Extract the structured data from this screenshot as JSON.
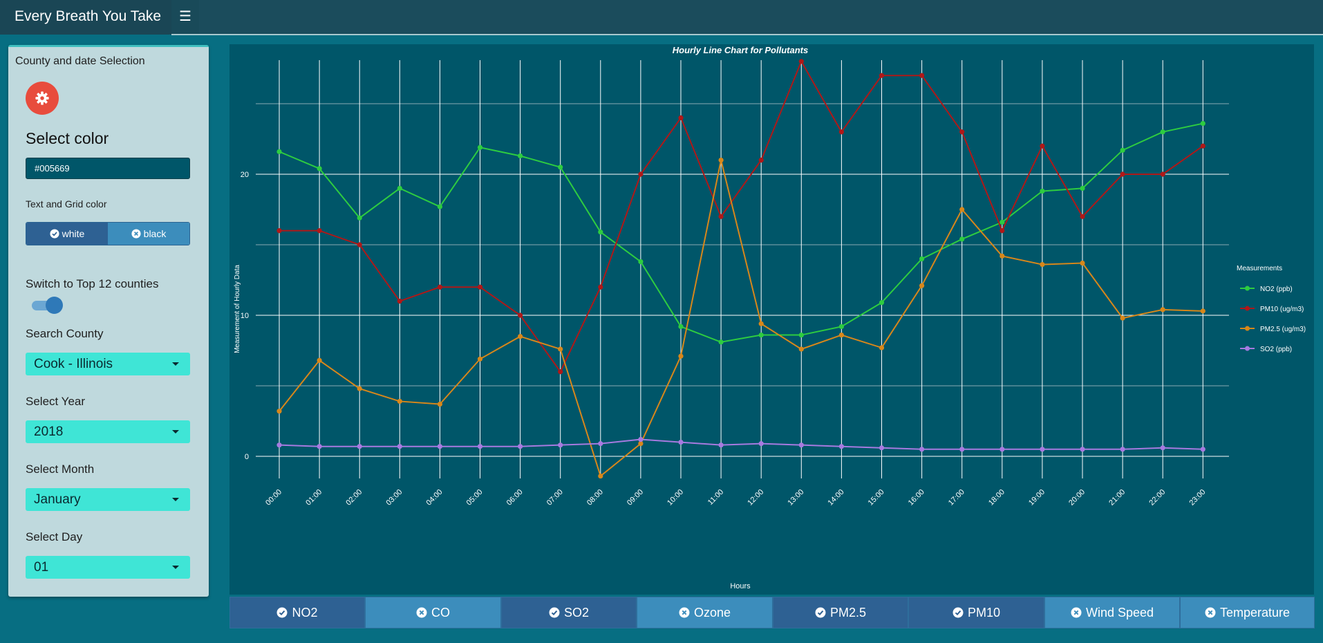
{
  "app": {
    "title": "Every Breath You Take",
    "menu_icon": "hamburger-icon"
  },
  "sidebar": {
    "title": "County and date Selection",
    "settings_icon": "gear-icon",
    "select_color_label": "Select color",
    "color_value": "#005669",
    "text_grid_label": "Text and Grid color",
    "text_grid_options": [
      {
        "label": "white",
        "icon": "check-circle-icon",
        "selected": true
      },
      {
        "label": "black",
        "icon": "x-circle-icon",
        "selected": false
      }
    ],
    "top12_label": "Switch to Top 12 counties",
    "top12_on": true,
    "county_label": "Search County",
    "county_value": "Cook - Illinois",
    "year_label": "Select Year",
    "year_value": "2018",
    "month_label": "Select Month",
    "month_value": "January",
    "day_label": "Select Day",
    "day_value": "01"
  },
  "chart_data": {
    "type": "line",
    "title": "Hourly Line Chart for Pollutants",
    "xlabel": "Hours",
    "ylabel": "Measurement of Hourly Data",
    "legend_title": "Measurements",
    "legend_position": "right",
    "grid": true,
    "ylim": [
      -3.2,
      29.6
    ],
    "yticks": [
      0,
      10,
      20
    ],
    "categories": [
      "00:00",
      "01:00",
      "02:00",
      "03:00",
      "04:00",
      "05:00",
      "06:00",
      "07:00",
      "08:00",
      "09:00",
      "10:00",
      "11:00",
      "12:00",
      "13:00",
      "14:00",
      "15:00",
      "16:00",
      "17:00",
      "18:00",
      "19:00",
      "20:00",
      "21:00",
      "22:00",
      "23:00"
    ],
    "series": [
      {
        "name": "NO2 (ppb)",
        "color": "#2ecc40",
        "values": [
          21.6,
          20.4,
          16.9,
          19.0,
          17.7,
          21.9,
          21.3,
          20.5,
          15.9,
          13.8,
          9.2,
          8.1,
          8.6,
          8.6,
          9.2,
          10.9,
          14.0,
          15.4,
          16.6,
          18.8,
          19.0,
          21.7,
          23.0,
          23.6
        ]
      },
      {
        "name": "PM10 (ug/m3)",
        "color": "#b01818",
        "values": [
          16.0,
          16.0,
          15.0,
          11.0,
          12.0,
          12.0,
          10.0,
          6.0,
          12.0,
          20.0,
          24.0,
          17.0,
          21.0,
          28.0,
          23.0,
          27.0,
          27.0,
          23.0,
          16.0,
          22.0,
          17.0,
          20.0,
          20.0,
          22.0
        ]
      },
      {
        "name": "PM2.5 (ug/m3)",
        "color": "#d8871a",
        "values": [
          3.2,
          6.8,
          4.8,
          3.9,
          3.7,
          6.9,
          8.5,
          7.6,
          -1.4,
          0.9,
          7.1,
          21.0,
          9.4,
          7.6,
          8.6,
          7.7,
          12.1,
          17.5,
          14.2,
          13.6,
          13.7,
          9.8,
          10.4,
          10.3
        ]
      },
      {
        "name": "SO2 (ppb)",
        "color": "#a77ae0",
        "values": [
          0.8,
          0.7,
          0.7,
          0.7,
          0.7,
          0.7,
          0.7,
          0.8,
          0.9,
          1.2,
          1.0,
          0.8,
          0.9,
          0.8,
          0.7,
          0.6,
          0.5,
          0.5,
          0.5,
          0.5,
          0.5,
          0.5,
          0.6,
          0.5
        ]
      }
    ]
  },
  "pollutants": [
    {
      "label": "NO2",
      "selected": true
    },
    {
      "label": "CO",
      "selected": false
    },
    {
      "label": "SO2",
      "selected": true
    },
    {
      "label": "Ozone",
      "selected": false
    },
    {
      "label": "PM2.5",
      "selected": true
    },
    {
      "label": "PM10",
      "selected": true
    },
    {
      "label": "Wind Speed",
      "selected": false
    },
    {
      "label": "Temperature",
      "selected": false
    }
  ]
}
